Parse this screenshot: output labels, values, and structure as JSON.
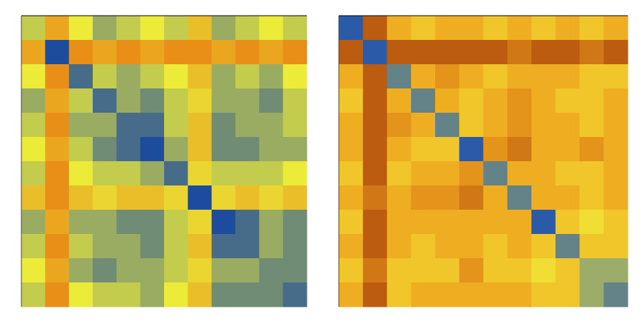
{
  "chart_data": [
    {
      "type": "heatmap",
      "zlim": [
        0,
        1
      ],
      "colormap": [
        {
          "value": 0,
          "color": "#1d4c9e"
        },
        {
          "value": 0.5,
          "color": "#ecec38"
        },
        {
          "value": 1,
          "color": "#e8780f"
        }
      ],
      "z": [
        [
          0.4,
          0.8,
          0.5,
          0.3,
          0.4,
          0.5,
          0.4,
          0.7,
          0.3,
          0.4,
          0.5,
          0.4
        ],
        [
          0.8,
          0,
          0.9,
          0.8,
          0.9,
          0.8,
          0.9,
          0.9,
          0.8,
          0.9,
          0.8,
          0.9
        ],
        [
          0.5,
          0.9,
          0.1,
          0.4,
          0.3,
          0.4,
          0.5,
          0.7,
          0.3,
          0.4,
          0.3,
          0.5
        ],
        [
          0.3,
          0.8,
          0.4,
          0.1,
          0.3,
          0.2,
          0.4,
          0.6,
          0.3,
          0.3,
          0.2,
          0.4
        ],
        [
          0.4,
          0.9,
          0.3,
          0.3,
          0.1,
          0.1,
          0.4,
          0.7,
          0.2,
          0.3,
          0.3,
          0.4
        ],
        [
          0.5,
          0.8,
          0.4,
          0.2,
          0.1,
          0,
          0.3,
          0.7,
          0.2,
          0.2,
          0.3,
          0.3
        ],
        [
          0.4,
          0.9,
          0.5,
          0.4,
          0.4,
          0.3,
          0.1,
          0.6,
          0.4,
          0.4,
          0.4,
          0.5
        ],
        [
          0.7,
          0.9,
          0.7,
          0.6,
          0.7,
          0.7,
          0.6,
          0,
          0.6,
          0.7,
          0.6,
          0.7
        ],
        [
          0.3,
          0.8,
          0.3,
          0.3,
          0.2,
          0.2,
          0.4,
          0.6,
          0,
          0.1,
          0.3,
          0.2
        ],
        [
          0.4,
          0.9,
          0.4,
          0.3,
          0.3,
          0.2,
          0.4,
          0.7,
          0.1,
          0.1,
          0.3,
          0.2
        ],
        [
          0.5,
          0.8,
          0.3,
          0.2,
          0.3,
          0.3,
          0.4,
          0.6,
          0.3,
          0.3,
          0.2,
          0.2
        ],
        [
          0.4,
          0.9,
          0.5,
          0.4,
          0.4,
          0.3,
          0.5,
          0.7,
          0.2,
          0.2,
          0.2,
          0.1
        ]
      ]
    },
    {
      "type": "heatmap",
      "zlim": [
        0,
        1
      ],
      "colormap": [
        {
          "value": 0,
          "color": "#2a5aa8"
        },
        {
          "value": 0.35,
          "color": "#f2ea3a"
        },
        {
          "value": 0.65,
          "color": "#eea21c"
        },
        {
          "value": 1,
          "color": "#a8400c"
        }
      ],
      "z": [
        [
          0,
          0.9,
          0.6,
          0.5,
          0.6,
          0.6,
          0.5,
          0.6,
          0.5,
          0.6,
          0.5,
          0.6
        ],
        [
          0.9,
          0,
          0.9,
          0.9,
          0.9,
          0.9,
          0.9,
          0.8,
          0.9,
          0.9,
          0.8,
          0.9
        ],
        [
          0.6,
          0.9,
          0.1,
          0.6,
          0.7,
          0.6,
          0.5,
          0.6,
          0.6,
          0.6,
          0.5,
          0.5
        ],
        [
          0.5,
          0.9,
          0.6,
          0.1,
          0.6,
          0.5,
          0.6,
          0.7,
          0.6,
          0.5,
          0.5,
          0.6
        ],
        [
          0.6,
          0.9,
          0.7,
          0.6,
          0.1,
          0.5,
          0.6,
          0.7,
          0.6,
          0.6,
          0.5,
          0.6
        ],
        [
          0.6,
          0.9,
          0.6,
          0.5,
          0.5,
          0,
          0.7,
          0.8,
          0.6,
          0.6,
          0.7,
          0.6
        ],
        [
          0.5,
          0.9,
          0.5,
          0.6,
          0.6,
          0.7,
          0.1,
          0.6,
          0.6,
          0.5,
          0.5,
          0.6
        ],
        [
          0.6,
          0.8,
          0.6,
          0.7,
          0.7,
          0.8,
          0.6,
          0.1,
          0.6,
          0.6,
          0.5,
          0.6
        ],
        [
          0.5,
          0.9,
          0.6,
          0.6,
          0.6,
          0.6,
          0.6,
          0.6,
          0,
          0.5,
          0.4,
          0.5
        ],
        [
          0.6,
          0.9,
          0.6,
          0.5,
          0.6,
          0.6,
          0.5,
          0.6,
          0.5,
          0.1,
          0.5,
          0.5
        ],
        [
          0.5,
          0.8,
          0.5,
          0.5,
          0.5,
          0.7,
          0.5,
          0.5,
          0.4,
          0.5,
          0.2,
          0.2
        ],
        [
          0.6,
          0.9,
          0.5,
          0.6,
          0.6,
          0.6,
          0.6,
          0.6,
          0.5,
          0.5,
          0.2,
          0.1
        ]
      ]
    }
  ]
}
